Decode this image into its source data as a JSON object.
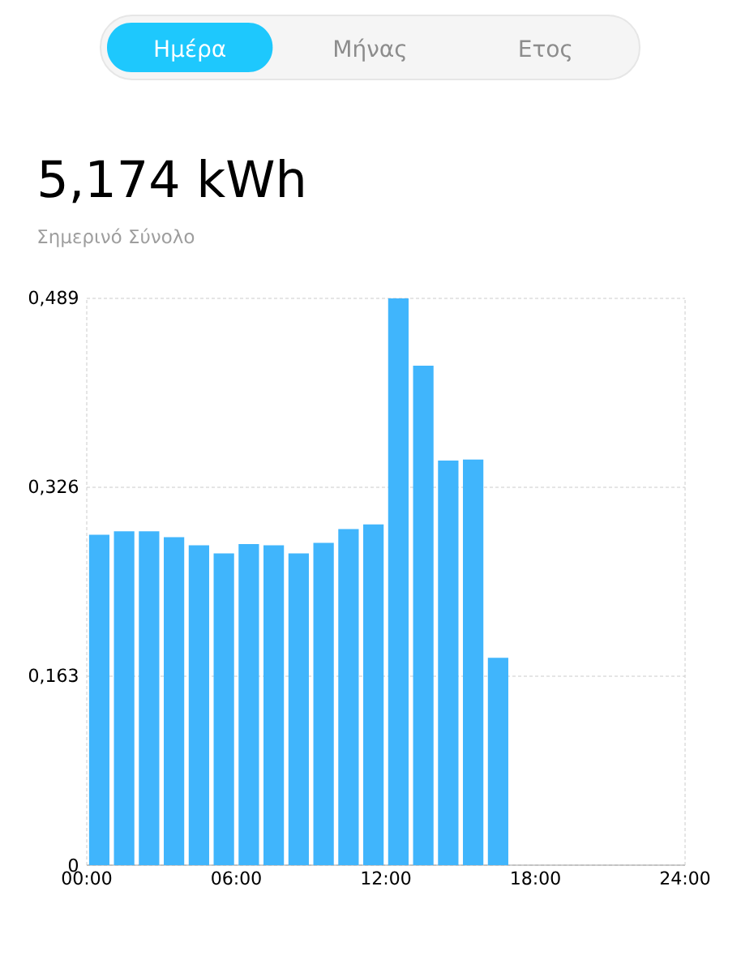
{
  "chart_data": {
    "type": "bar",
    "title": "5,174 kWh",
    "subtitle": "Σημερινό Σύνολο",
    "annotations": [
      "Ημέρα",
      "Μήνας",
      "Ετος"
    ],
    "x": [
      0.5,
      1.5,
      2.5,
      3.5,
      4.5,
      5.5,
      6.5,
      7.5,
      8.5,
      9.5,
      10.5,
      11.5,
      12.5,
      13.5,
      14.5,
      15.5,
      16.5
    ],
    "values": [
      0.285,
      0.288,
      0.288,
      0.283,
      0.276,
      0.269,
      0.277,
      0.276,
      0.269,
      0.278,
      0.29,
      0.294,
      0.489,
      0.431,
      0.349,
      0.35,
      0.179
    ],
    "color": "#40b5fc",
    "xlim": [
      0,
      24
    ],
    "xticks": [
      {
        "value": 0,
        "label": "00:00"
      },
      {
        "value": 6,
        "label": "06:00"
      },
      {
        "value": 12,
        "label": "12:00"
      },
      {
        "value": 18,
        "label": "18:00"
      },
      {
        "value": 24,
        "label": "24:00"
      }
    ],
    "ylim": [
      0,
      0.489
    ],
    "yticks": [
      0,
      {
        "value": 0.163,
        "label": "0,163"
      },
      {
        "value": 0.326,
        "label": "0,326"
      },
      {
        "value": 0.489,
        "label": "0,489"
      }
    ],
    "grid": "y"
  }
}
